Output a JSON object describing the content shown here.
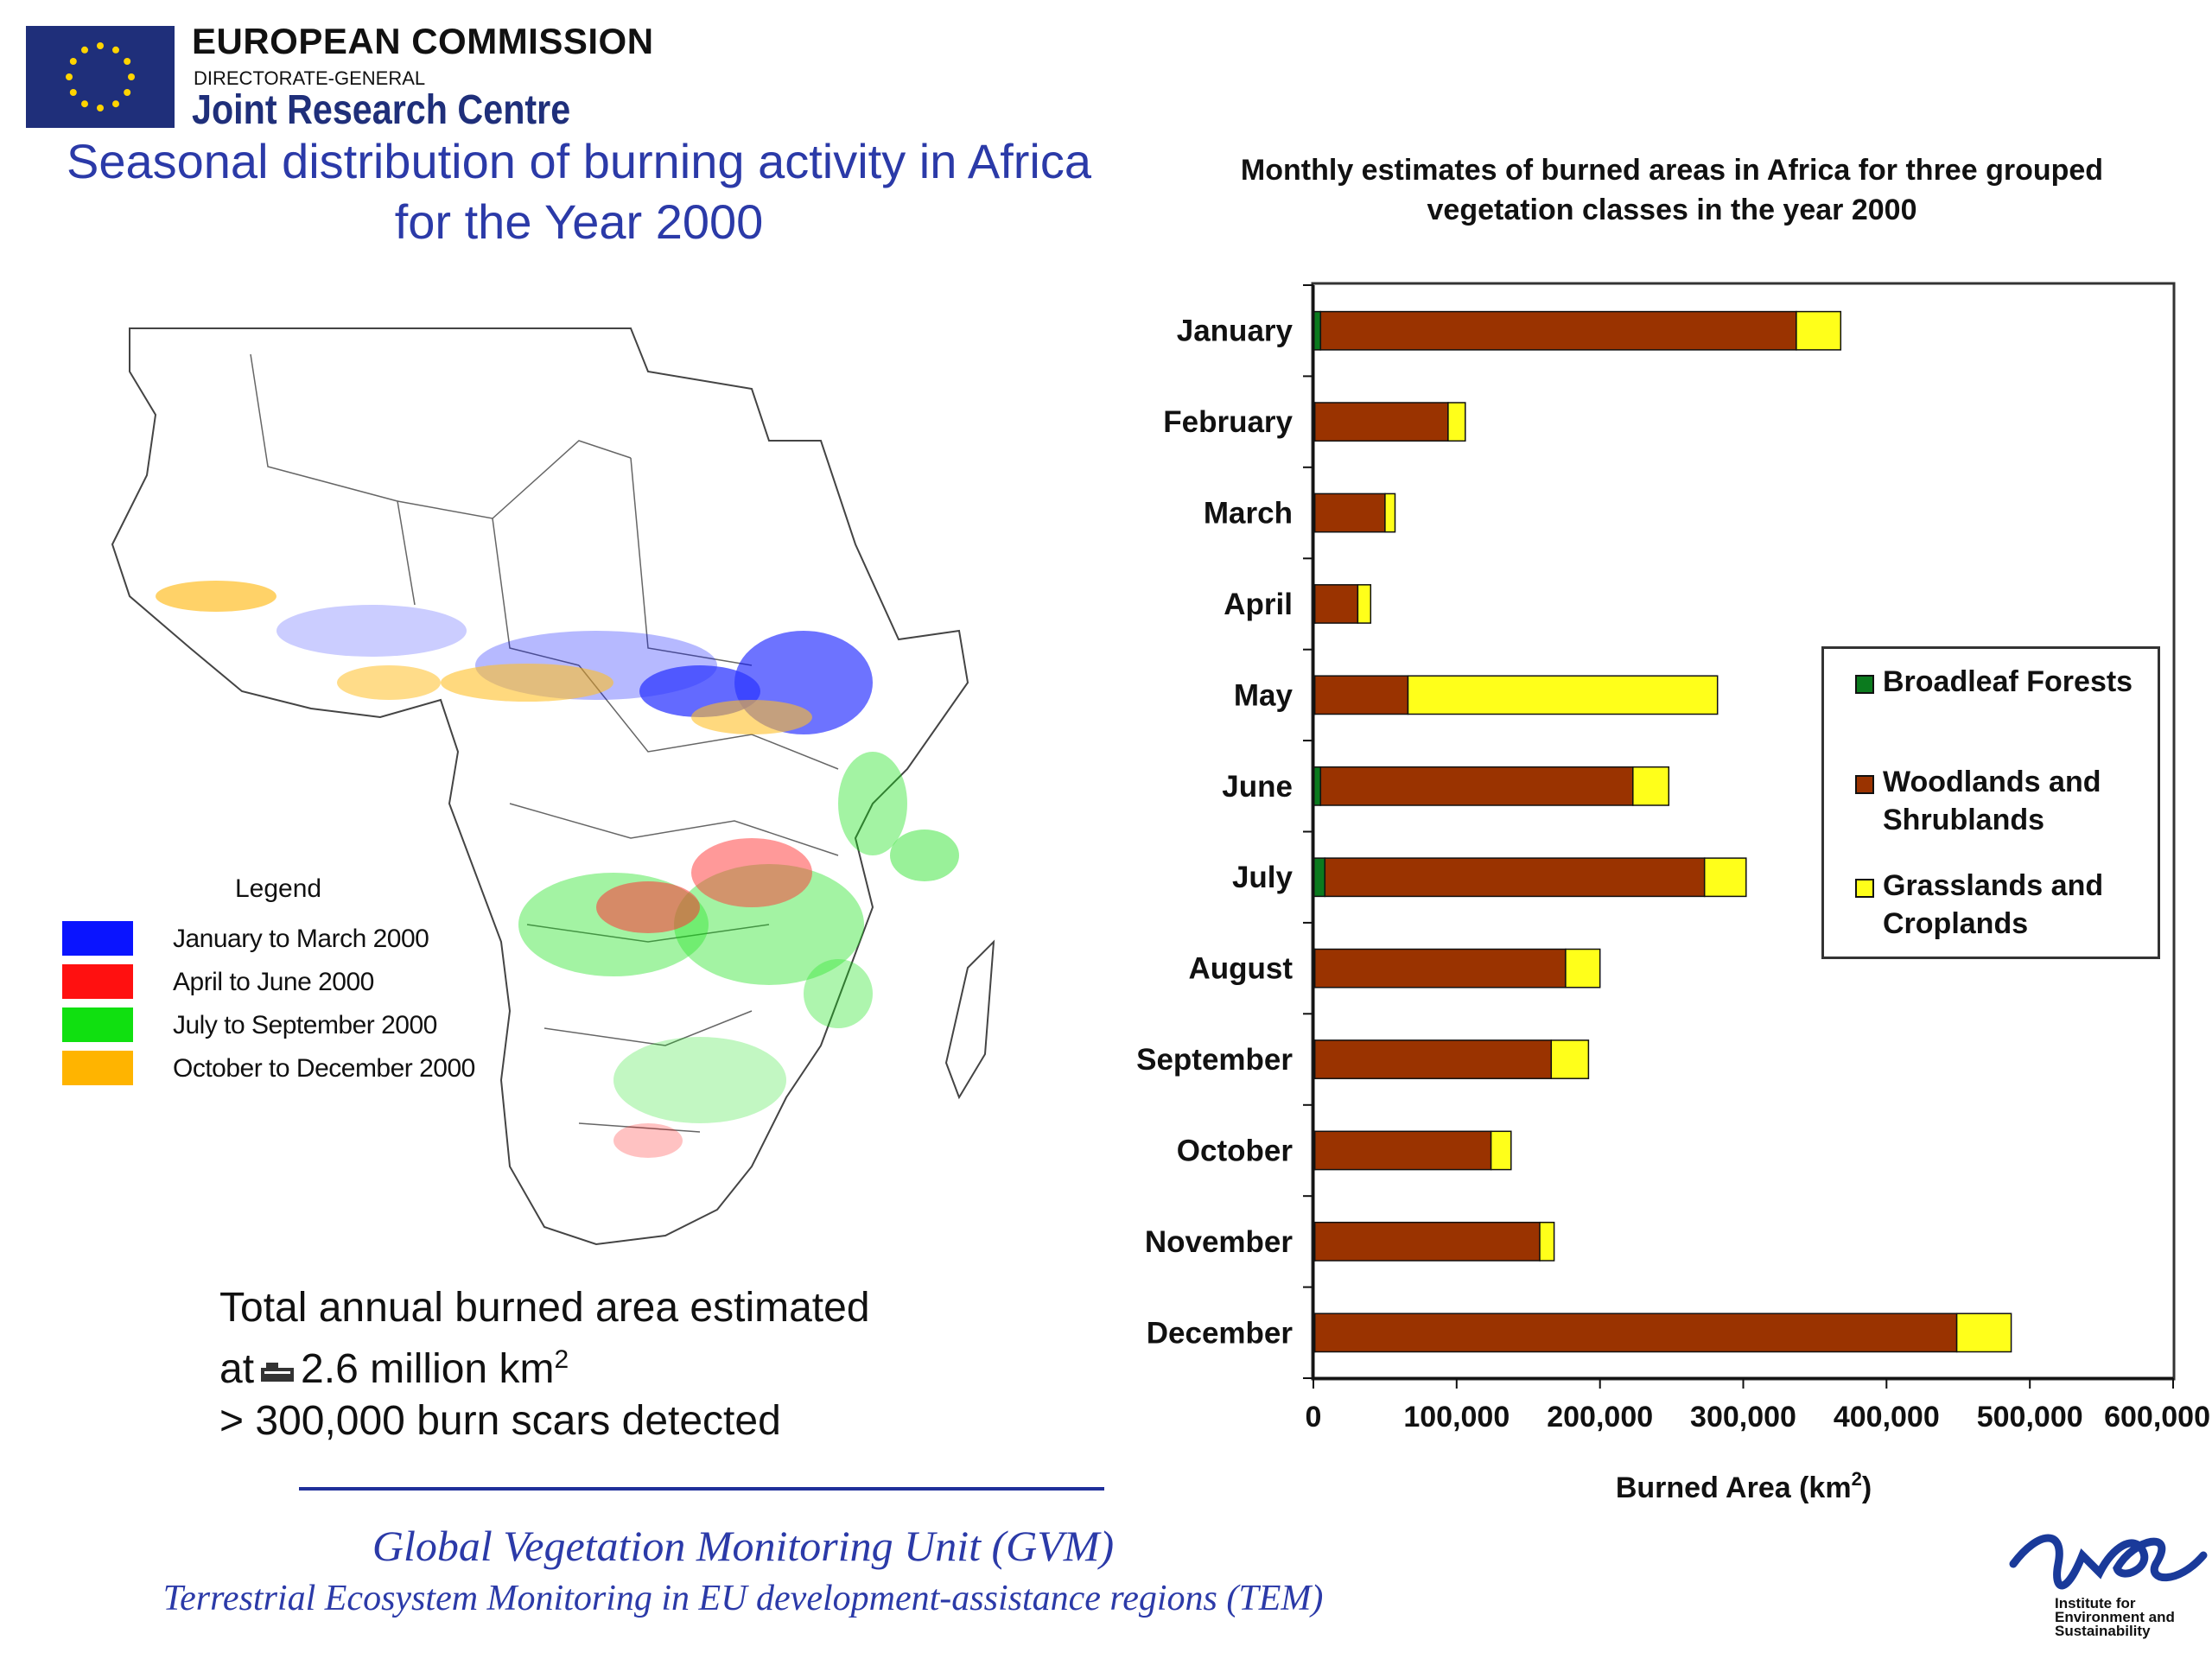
{
  "header": {
    "org_name": "EUROPEAN COMMISSION",
    "dg": "DIRECTORATE-GENERAL",
    "unit": "Joint Research Centre",
    "title_line1": "Seasonal distribution of burning activity in Africa",
    "title_line2": "for the Year 2000"
  },
  "map_legend": {
    "title": "Legend",
    "items": [
      {
        "label": "January to March 2000",
        "color": "#0a14ff"
      },
      {
        "label": "April to June 2000",
        "color": "#ff1010"
      },
      {
        "label": "July to September 2000",
        "color": "#10e010"
      },
      {
        "label": "October to December 2000",
        "color": "#ffb400"
      }
    ]
  },
  "summary": {
    "line1": "Total annual burned area estimated",
    "line2_pre": "at",
    "line2_post": "2.6 million km",
    "line2_sup": "2",
    "line3": "> 300,000 burn scars detected"
  },
  "footer": {
    "line1": "Global Vegetation Monitoring Unit (GVM)",
    "line2": "Terrestrial Ecosystem Monitoring in EU development-assistance regions (TEM)",
    "ies_caption": [
      "Institute for",
      "Environment and",
      "Sustainability"
    ]
  },
  "chart_data": {
    "type": "bar",
    "orientation": "horizontal",
    "stacked": true,
    "title": "Monthly estimates of burned areas in Africa for three grouped vegetation classes in the year 2000",
    "title_line1": "Monthly estimates of burned areas in Africa for three grouped",
    "title_line2": "vegetation classes in the year 2000",
    "categories": [
      "January",
      "February",
      "March",
      "April",
      "May",
      "June",
      "July",
      "August",
      "September",
      "October",
      "November",
      "December"
    ],
    "series": [
      {
        "name": "Broadleaf Forests",
        "color": "#0b7a1e",
        "values": [
          5000,
          1000,
          1000,
          1000,
          1000,
          5000,
          8000,
          1000,
          1000,
          1000,
          1000,
          1000
        ]
      },
      {
        "name": "Woodlands and Shrublands",
        "color": "#9a3300",
        "values": [
          332000,
          93000,
          49000,
          30000,
          65000,
          218000,
          265000,
          175000,
          165000,
          123000,
          157000,
          448000
        ]
      },
      {
        "name": "Grasslands and Croplands",
        "color": "#ffff1a",
        "values": [
          31000,
          12000,
          7000,
          9000,
          216000,
          25000,
          29000,
          24000,
          26000,
          14000,
          10000,
          38000
        ]
      }
    ],
    "xlim": [
      0,
      600000
    ],
    "xticks": [
      "0",
      "100,000",
      "200,000",
      "300,000",
      "400,000",
      "500,000",
      "600,000"
    ],
    "xtick_values": [
      0,
      100000,
      200000,
      300000,
      400000,
      500000,
      600000
    ],
    "xlabel_main": "Burned Area (km",
    "xlabel_sup": "2",
    "xlabel_end": ")",
    "legend_position": "right",
    "legend_labels": [
      [
        "Broadleaf Forests"
      ],
      [
        "Woodlands and",
        "Shrublands"
      ],
      [
        "Grasslands and",
        "Croplands"
      ]
    ],
    "grid": false
  }
}
